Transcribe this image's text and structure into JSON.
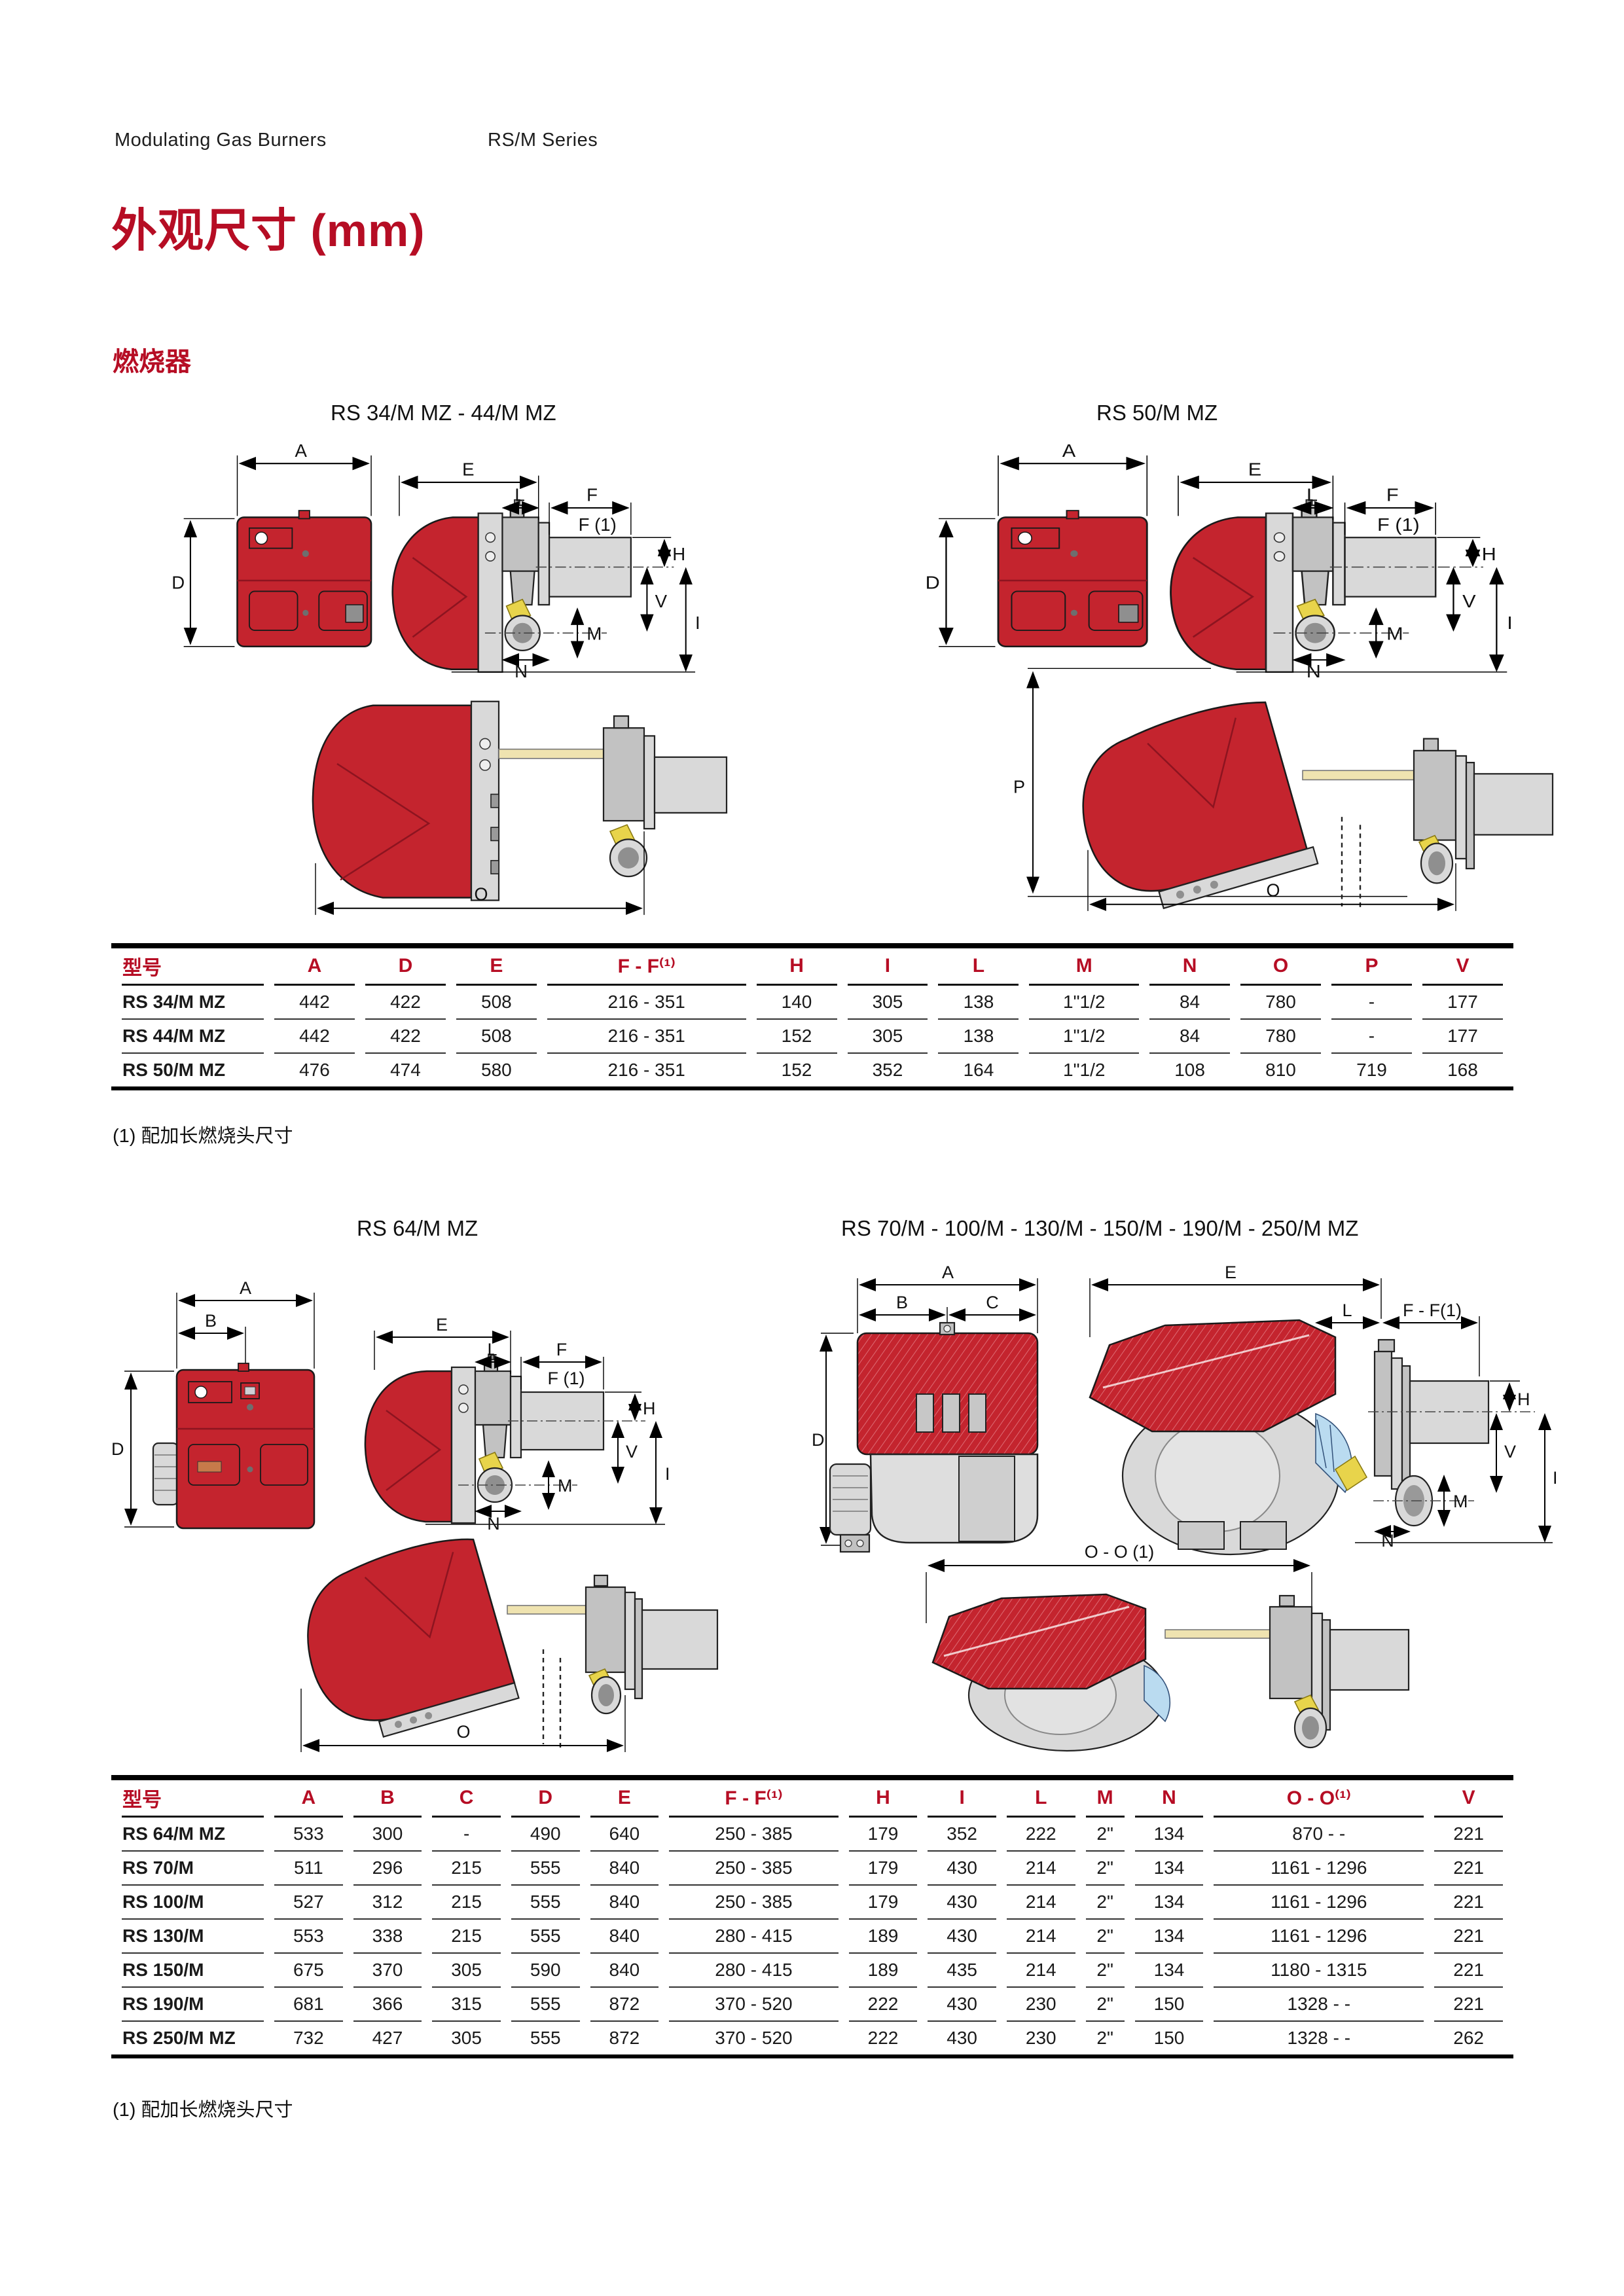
{
  "page": {
    "header_left": "Modulating Gas Burners",
    "header_right": "RS/M Series",
    "title": "外观尺寸 (mm)",
    "section_label": "燃烧器",
    "footnote1": "(1) 配加长燃烧头尺寸",
    "footnote2": "(1) 配加长燃烧头尺寸"
  },
  "colors": {
    "accent_red": "#b60d24",
    "burner_red": "#c4242e",
    "metal_gray": "#d9d9d9"
  },
  "diagrams": {
    "group1_label": "RS 34/M MZ - 44/M MZ",
    "group2_label": "RS 50/M MZ",
    "group3_label": "RS 64/M MZ",
    "group4_label": "RS 70/M - 100/M - 130/M - 150/M - 190/M - 250/M MZ"
  },
  "dims": {
    "A": "A",
    "B": "B",
    "C": "C",
    "D": "D",
    "E": "E",
    "F": "F",
    "F1": "F (1)",
    "FF1": "F - F(1)",
    "H": "H",
    "I": "I",
    "L": "L",
    "M": "M",
    "N": "N",
    "O": "O",
    "OO1": "O - O (1)",
    "P": "P",
    "V": "V"
  },
  "table1": {
    "columns": [
      "型号",
      "A",
      "D",
      "E",
      "F - F⁽¹⁾",
      "H",
      "I",
      "L",
      "M",
      "N",
      "O",
      "P",
      "V"
    ],
    "rows": [
      [
        "RS 34/M MZ",
        "442",
        "422",
        "508",
        "216 - 351",
        "140",
        "305",
        "138",
        "1\"1/2",
        "84",
        "780",
        "-",
        "177"
      ],
      [
        "RS 44/M MZ",
        "442",
        "422",
        "508",
        "216 - 351",
        "152",
        "305",
        "138",
        "1\"1/2",
        "84",
        "780",
        "-",
        "177"
      ],
      [
        "RS 50/M MZ",
        "476",
        "474",
        "580",
        "216 - 351",
        "152",
        "352",
        "164",
        "1\"1/2",
        "108",
        "810",
        "719",
        "168"
      ]
    ]
  },
  "table2": {
    "columns": [
      "型号",
      "A",
      "B",
      "C",
      "D",
      "E",
      "F - F⁽¹⁾",
      "H",
      "I",
      "L",
      "M",
      "N",
      "O - O⁽¹⁾",
      "V"
    ],
    "rows": [
      [
        "RS 64/M MZ",
        "533",
        "300",
        "-",
        "490",
        "640",
        "250 - 385",
        "179",
        "352",
        "222",
        "2\"",
        "134",
        "870 - -",
        "221"
      ],
      [
        "RS 70/M",
        "511",
        "296",
        "215",
        "555",
        "840",
        "250 - 385",
        "179",
        "430",
        "214",
        "2\"",
        "134",
        "1161 - 1296",
        "221"
      ],
      [
        "RS 100/M",
        "527",
        "312",
        "215",
        "555",
        "840",
        "250 - 385",
        "179",
        "430",
        "214",
        "2\"",
        "134",
        "1161 - 1296",
        "221"
      ],
      [
        "RS 130/M",
        "553",
        "338",
        "215",
        "555",
        "840",
        "280 - 415",
        "189",
        "430",
        "214",
        "2\"",
        "134",
        "1161 - 1296",
        "221"
      ],
      [
        "RS 150/M",
        "675",
        "370",
        "305",
        "590",
        "840",
        "280 - 415",
        "189",
        "435",
        "214",
        "2\"",
        "134",
        "1180 - 1315",
        "221"
      ],
      [
        "RS 190/M",
        "681",
        "366",
        "315",
        "555",
        "872",
        "370 - 520",
        "222",
        "430",
        "230",
        "2\"",
        "150",
        "1328 - -",
        "221"
      ],
      [
        "RS 250/M MZ",
        "732",
        "427",
        "305",
        "555",
        "872",
        "370 - 520",
        "222",
        "430",
        "230",
        "2\"",
        "150",
        "1328 - -",
        "262"
      ]
    ]
  }
}
